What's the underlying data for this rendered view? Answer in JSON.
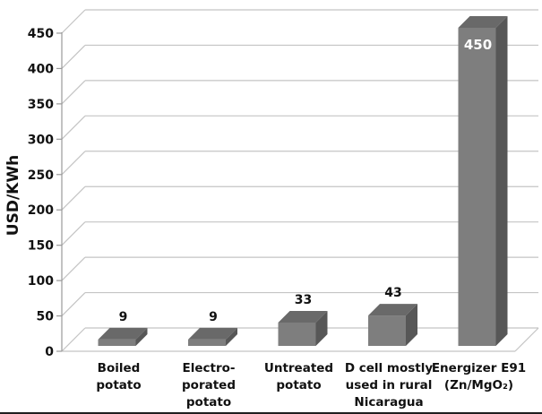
{
  "chart_data": {
    "type": "bar",
    "style": "3d-column",
    "title": "",
    "xlabel": "",
    "ylabel": "USD/KWh",
    "categories": [
      "Boiled potato",
      "Electro-porated potato",
      "Untreated potato",
      "D cell mostly used in rural Nicaragua",
      "Energizer E91 (Zn/MgO₂)"
    ],
    "categories_lines": [
      [
        "Boiled",
        "potato"
      ],
      [
        "Electro-",
        "porated",
        "potato"
      ],
      [
        "Untreated",
        "potato"
      ],
      [
        "D cell mostly",
        "used in rural",
        "Nicaragua"
      ],
      [
        "Energizer E91",
        "(Zn/MgO₂)"
      ]
    ],
    "values": [
      9,
      9,
      33,
      43,
      450
    ],
    "data_labels": [
      "9",
      "9",
      "33",
      "43",
      "450"
    ],
    "yticks": [
      0,
      50,
      100,
      150,
      200,
      250,
      300,
      350,
      400,
      450
    ],
    "ylim": [
      0,
      450
    ],
    "grid": true,
    "legend": false,
    "colors": {
      "bar_front": "#7e7e7e",
      "bar_top": "#696969",
      "bar_side": "#575757",
      "gridline": "#c4c4c4",
      "axis": "#9a9a9a",
      "data_label": "#111111",
      "data_label_inside": "#ffffff",
      "text": "#111111"
    }
  }
}
